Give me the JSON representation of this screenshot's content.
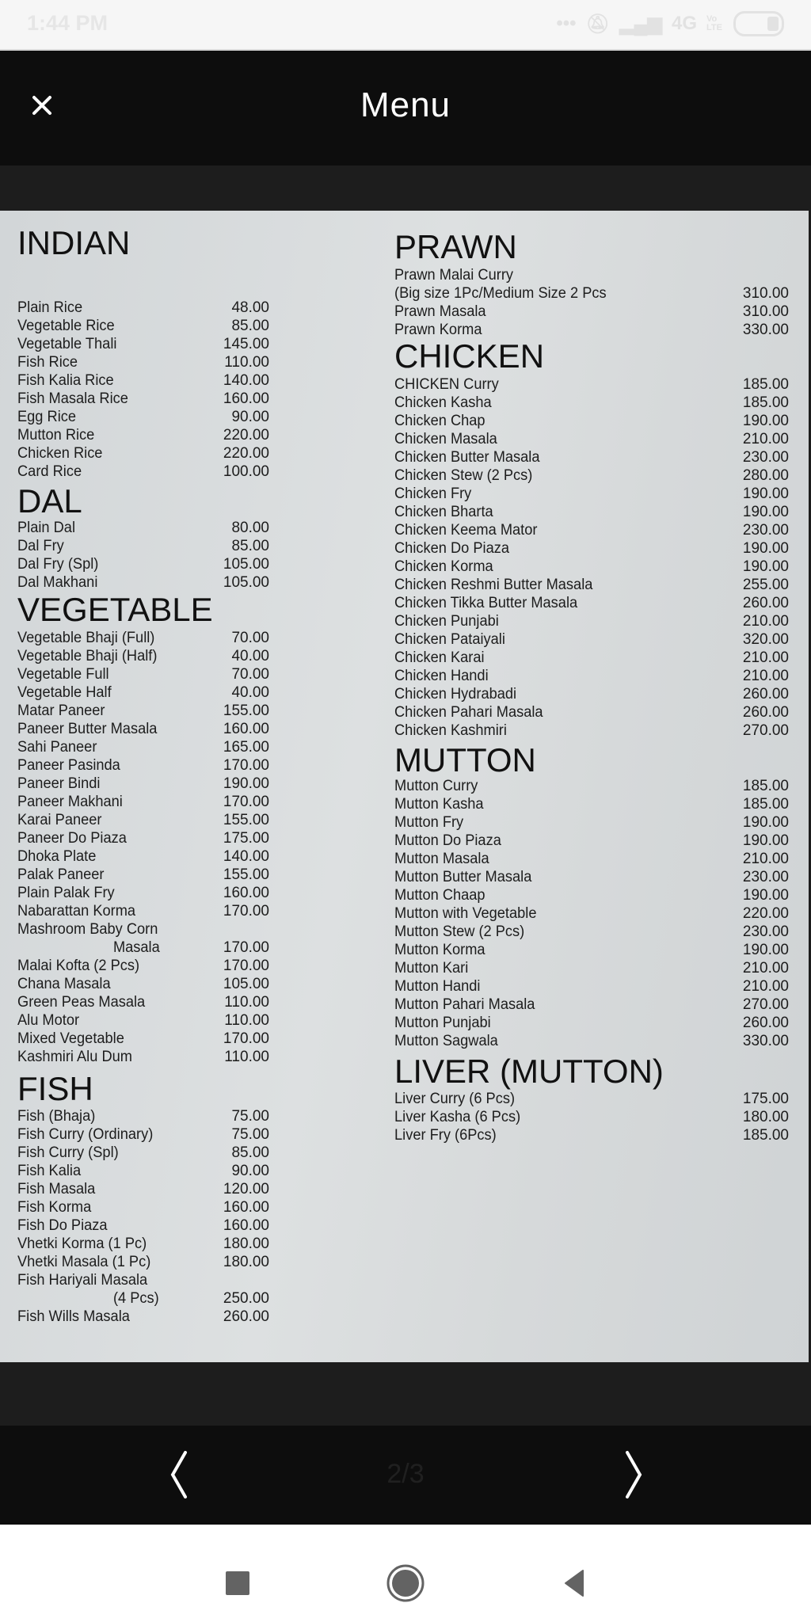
{
  "status_bar": {
    "time": "1:44 PM",
    "network": "4G",
    "volte": "Vo LTE",
    "icons": [
      "more-dots-icon",
      "bell-muted-icon",
      "signal-icon",
      "battery-icon"
    ]
  },
  "header": {
    "title": "Menu",
    "close_icon": "close-icon"
  },
  "pager": {
    "indicator": "2/3",
    "prev_icon": "chevron-left-icon",
    "next_icon": "chevron-right-icon"
  },
  "system_nav": {
    "icons": [
      "recents-square-icon",
      "home-circle-icon",
      "back-triangle-icon"
    ]
  },
  "menu": {
    "left": [
      {
        "heading": "INDIAN",
        "items": [
          {
            "name": "Plain Rice",
            "price": "48.00"
          },
          {
            "name": "Vegetable Rice",
            "price": "85.00"
          },
          {
            "name": "Vegetable Thali",
            "price": "145.00"
          },
          {
            "name": "Fish Rice",
            "price": "110.00"
          },
          {
            "name": "Fish Kalia Rice",
            "price": "140.00"
          },
          {
            "name": "Fish Masala Rice",
            "price": "160.00"
          },
          {
            "name": "Egg Rice",
            "price": "90.00"
          },
          {
            "name": "Mutton Rice",
            "price": "220.00"
          },
          {
            "name": "Chicken Rice",
            "price": "220.00"
          },
          {
            "name": "Card Rice",
            "price": "100.00"
          }
        ]
      },
      {
        "heading": "DAL",
        "items": [
          {
            "name": "Plain Dal",
            "price": "80.00"
          },
          {
            "name": "Dal Fry",
            "price": "85.00"
          },
          {
            "name": "Dal Fry (Spl)",
            "price": "105.00"
          },
          {
            "name": "Dal Makhani",
            "price": "105.00"
          }
        ]
      },
      {
        "heading": "VEGETABLE",
        "items": [
          {
            "name": "Vegetable Bhaji (Full)",
            "price": "70.00"
          },
          {
            "name": "Vegetable Bhaji (Half)",
            "price": "40.00"
          },
          {
            "name": "Vegetable Full",
            "price": "70.00"
          },
          {
            "name": "Vegetable Half",
            "price": "40.00"
          },
          {
            "name": "Matar Paneer",
            "price": "155.00"
          },
          {
            "name": "Paneer Butter Masala",
            "price": "160.00"
          },
          {
            "name": "Sahi Paneer",
            "price": "165.00"
          },
          {
            "name": "Paneer Pasinda",
            "price": "170.00"
          },
          {
            "name": "Paneer Bindi",
            "price": "190.00"
          },
          {
            "name": "Paneer Makhani",
            "price": "170.00"
          },
          {
            "name": "Karai Paneer",
            "price": "155.00"
          },
          {
            "name": "Paneer Do Piaza",
            "price": "175.00"
          },
          {
            "name": "Dhoka Plate",
            "price": "140.00"
          },
          {
            "name": "Palak Paneer",
            "price": "155.00"
          },
          {
            "name": "Plain Palak Fry",
            "price": "160.00"
          },
          {
            "name": "Nabarattan Korma",
            "price": "170.00"
          },
          {
            "name": "Mashroom Baby Corn",
            "cont": "Masala",
            "price": "170.00"
          },
          {
            "name": "Malai Kofta (2 Pcs)",
            "price": "170.00"
          },
          {
            "name": "Chana Masala",
            "price": "105.00"
          },
          {
            "name": "Green Peas Masala",
            "price": "110.00"
          },
          {
            "name": "Alu Motor",
            "price": "110.00"
          },
          {
            "name": "Mixed Vegetable",
            "price": "170.00"
          },
          {
            "name": "Kashmiri Alu Dum",
            "price": "110.00"
          }
        ]
      },
      {
        "heading": "FISH",
        "items": [
          {
            "name": "Fish (Bhaja)",
            "price": "75.00"
          },
          {
            "name": "Fish Curry (Ordinary)",
            "price": "75.00"
          },
          {
            "name": "Fish Curry (Spl)",
            "price": "85.00"
          },
          {
            "name": "Fish Kalia",
            "price": "90.00"
          },
          {
            "name": "Fish Masala",
            "price": "120.00"
          },
          {
            "name": "Fish Korma",
            "price": "160.00"
          },
          {
            "name": "Fish Do Piaza",
            "price": "160.00"
          },
          {
            "name": "Vhetki Korma (1 Pc)",
            "price": "180.00"
          },
          {
            "name": "Vhetki Masala (1 Pc)",
            "price": "180.00"
          },
          {
            "name": "Fish Hariyali Masala",
            "cont": "(4 Pcs)",
            "price": "250.00"
          },
          {
            "name": "Fish Wills Masala",
            "price": "260.00"
          }
        ]
      }
    ],
    "right": [
      {
        "heading": "PRAWN",
        "items": [
          {
            "name": "Prawn Malai Curry",
            "cont": "(Big size 1Pc/Medium Size 2 Pcs",
            "price": "310.00"
          },
          {
            "name": "Prawn Masala",
            "price": "310.00"
          },
          {
            "name": "Prawn Korma",
            "price": "330.00"
          }
        ]
      },
      {
        "heading": "CHICKEN",
        "items": [
          {
            "name": "CHICKEN Curry",
            "price": "185.00"
          },
          {
            "name": "Chicken Kasha",
            "price": "185.00"
          },
          {
            "name": "Chicken Chap",
            "price": "190.00"
          },
          {
            "name": "Chicken Masala",
            "price": "210.00"
          },
          {
            "name": "Chicken Butter Masala",
            "price": "230.00"
          },
          {
            "name": "Chicken Stew (2 Pcs)",
            "price": "280.00"
          },
          {
            "name": "Chicken Fry",
            "price": "190.00"
          },
          {
            "name": "Chicken Bharta",
            "price": "190.00"
          },
          {
            "name": "Chicken Keema Mator",
            "price": "230.00"
          },
          {
            "name": "Chicken Do Piaza",
            "price": "190.00"
          },
          {
            "name": "Chicken Korma",
            "price": "190.00"
          },
          {
            "name": "Chicken Reshmi Butter Masala",
            "price": "255.00"
          },
          {
            "name": "Chicken Tikka Butter Masala",
            "price": "260.00"
          },
          {
            "name": "Chicken Punjabi",
            "price": "210.00"
          },
          {
            "name": "Chicken Pataiyali",
            "price": "320.00"
          },
          {
            "name": "Chicken Karai",
            "price": "210.00"
          },
          {
            "name": "Chicken Handi",
            "price": "210.00"
          },
          {
            "name": "Chicken Hydrabadi",
            "price": "260.00"
          },
          {
            "name": "Chicken Pahari Masala",
            "price": "260.00"
          },
          {
            "name": "Chicken Kashmiri",
            "price": "270.00"
          }
        ]
      },
      {
        "heading": "MUTTON",
        "items": [
          {
            "name": "Mutton Curry",
            "price": "185.00"
          },
          {
            "name": "Mutton Kasha",
            "price": "185.00"
          },
          {
            "name": "Mutton Fry",
            "price": "190.00"
          },
          {
            "name": "Mutton Do Piaza",
            "price": "190.00"
          },
          {
            "name": "Mutton Masala",
            "price": "210.00"
          },
          {
            "name": "Mutton Butter Masala",
            "price": "230.00"
          },
          {
            "name": "Mutton Chaap",
            "price": "190.00"
          },
          {
            "name": "Mutton with Vegetable",
            "price": "220.00"
          },
          {
            "name": "Mutton Stew (2 Pcs)",
            "price": "230.00"
          },
          {
            "name": "Mutton Korma",
            "price": "190.00"
          },
          {
            "name": "Mutton Kari",
            "price": "210.00"
          },
          {
            "name": "Mutton Handi",
            "price": "210.00"
          },
          {
            "name": "Mutton Pahari Masala",
            "price": "270.00"
          },
          {
            "name": "Mutton Punjabi",
            "price": "260.00"
          },
          {
            "name": "Mutton Sagwala",
            "price": "330.00"
          }
        ]
      },
      {
        "heading": "LIVER (MUTTON)",
        "items": [
          {
            "name": "Liver Curry (6 Pcs)",
            "price": "175.00"
          },
          {
            "name": "Liver Kasha (6 Pcs)",
            "price": "180.00"
          },
          {
            "name": "Liver Fry (6Pcs)",
            "price": "185.00"
          }
        ]
      }
    ]
  }
}
